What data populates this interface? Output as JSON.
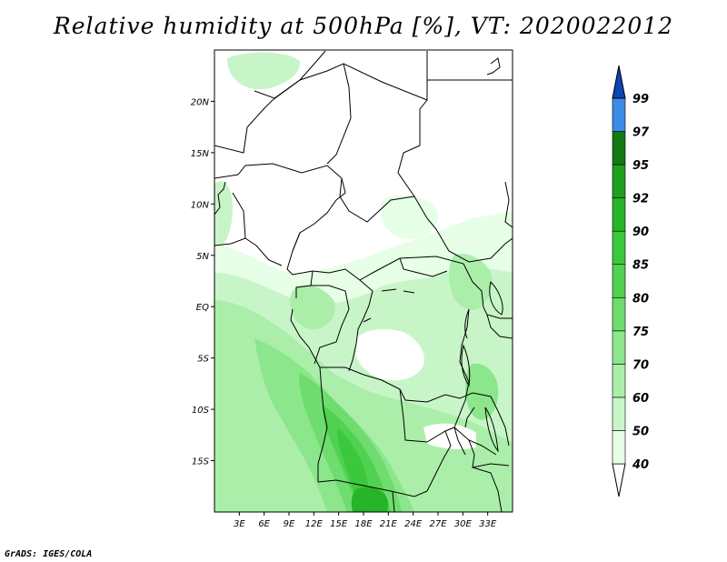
{
  "title": "Relative humidity at 500hPa [%], VT: 2020022012",
  "credit": "GrADS: IGES/COLA",
  "map": {
    "variable": "Relative humidity",
    "level": "500hPa",
    "units": "%",
    "valid_time": "2020022012",
    "lon_range": [
      0,
      36
    ],
    "lat_range": [
      -20,
      25
    ],
    "lat_labels": [
      {
        "value": 20,
        "label": "20N"
      },
      {
        "value": 15,
        "label": "15N"
      },
      {
        "value": 10,
        "label": "10N"
      },
      {
        "value": 5,
        "label": "5N"
      },
      {
        "value": 0,
        "label": "EQ"
      },
      {
        "value": -5,
        "label": "5S"
      },
      {
        "value": -10,
        "label": "10S"
      },
      {
        "value": -15,
        "label": "15S"
      }
    ],
    "lon_labels": [
      {
        "value": 3,
        "label": "3E"
      },
      {
        "value": 6,
        "label": "6E"
      },
      {
        "value": 9,
        "label": "9E"
      },
      {
        "value": 12,
        "label": "12E"
      },
      {
        "value": 15,
        "label": "15E"
      },
      {
        "value": 18,
        "label": "18E"
      },
      {
        "value": 21,
        "label": "21E"
      },
      {
        "value": 24,
        "label": "24E"
      },
      {
        "value": 27,
        "label": "27E"
      },
      {
        "value": 30,
        "label": "30E"
      },
      {
        "value": 33,
        "label": "33E"
      }
    ]
  },
  "colorbar": {
    "levels": [
      "40",
      "50",
      "60",
      "70",
      "75",
      "80",
      "85",
      "90",
      "92",
      "95",
      "97",
      "99"
    ],
    "colors": [
      "#e6ffe6",
      "#c8f5c8",
      "#aaeeaa",
      "#8ce68c",
      "#6edc6e",
      "#50d250",
      "#3cc83c",
      "#28b428",
      "#1ea01e",
      "#147814",
      "#3c8ce6",
      "#1e64dc",
      "#0a46b4"
    ]
  }
}
